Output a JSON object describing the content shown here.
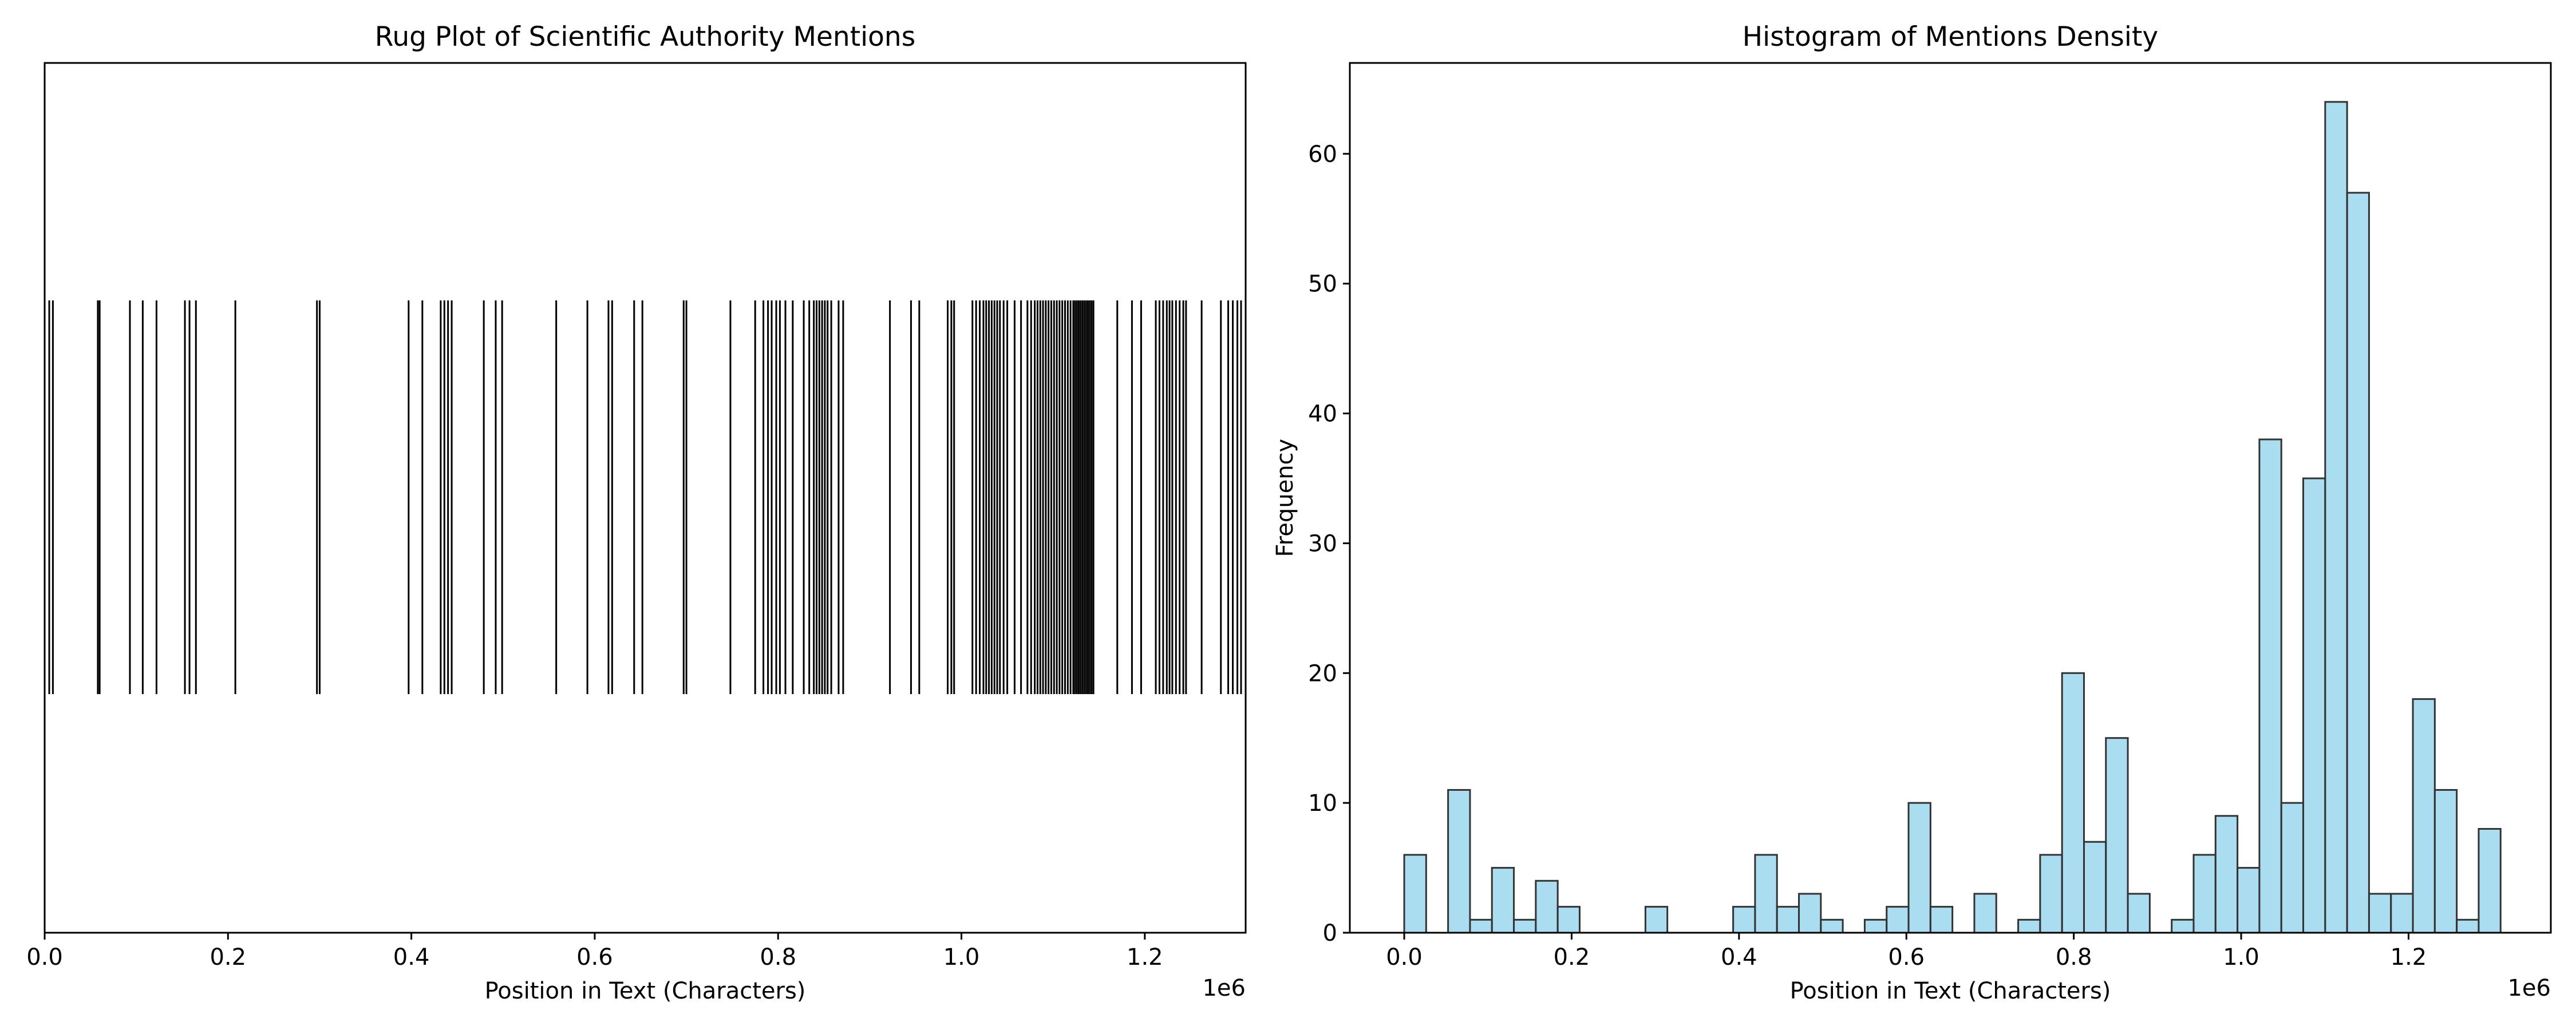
{
  "chart_data": [
    {
      "type": "rug",
      "title": "Rug Plot of Scientific Authority Mentions",
      "xlabel": "Position in Text (Characters)",
      "ylabel": "",
      "x_offset_text": "1e6",
      "xlim": [
        0,
        1310000
      ],
      "xticks": [
        0,
        200000,
        400000,
        600000,
        800000,
        1000000,
        1200000
      ],
      "xtick_labels": [
        "0.0",
        "0.2",
        "0.4",
        "0.6",
        "0.8",
        "1.0",
        "1.2"
      ],
      "grid": false,
      "positions": [
        5000,
        9000,
        58000,
        60000,
        93000,
        107000,
        122000,
        153000,
        158000,
        165000,
        208000,
        297000,
        300000,
        397000,
        412000,
        432000,
        436000,
        440000,
        444000,
        479000,
        492000,
        499000,
        558000,
        592000,
        615000,
        619000,
        643000,
        652000,
        697000,
        700000,
        748000,
        775000,
        784000,
        789000,
        793000,
        798000,
        802000,
        808000,
        816000,
        828000,
        834000,
        839000,
        842000,
        845000,
        848000,
        851000,
        854000,
        858000,
        866000,
        871000,
        922000,
        945000,
        954000,
        985000,
        989000,
        992000,
        1012000,
        1016000,
        1020000,
        1024000,
        1027000,
        1030000,
        1033000,
        1036000,
        1039000,
        1042000,
        1046000,
        1050000,
        1058000,
        1065000,
        1072000,
        1076000,
        1080000,
        1083000,
        1086000,
        1089000,
        1092000,
        1095000,
        1098000,
        1101000,
        1104000,
        1107000,
        1110000,
        1113000,
        1116000,
        1119000,
        1122000,
        1124000,
        1126000,
        1128000,
        1130000,
        1132000,
        1134000,
        1136000,
        1138000,
        1140000,
        1142000,
        1144000,
        1170000,
        1186000,
        1196000,
        1212000,
        1216000,
        1220000,
        1224000,
        1227000,
        1230000,
        1234000,
        1238000,
        1242000,
        1245000,
        1262000,
        1283000,
        1291000,
        1296000,
        1301000,
        1305000
      ]
    },
    {
      "type": "histogram",
      "title": "Histogram of Mentions Density",
      "xlabel": "Position in Text (Characters)",
      "ylabel": "Frequency",
      "x_offset_text": "1e6",
      "xlim": [
        -65000,
        1370000
      ],
      "ylim": [
        0,
        67
      ],
      "xticks": [
        0,
        200000,
        400000,
        600000,
        800000,
        1000000,
        1200000
      ],
      "xtick_labels": [
        "0.0",
        "0.2",
        "0.4",
        "0.6",
        "0.8",
        "1.0",
        "1.2"
      ],
      "yticks": [
        0,
        10,
        20,
        30,
        40,
        50,
        60
      ],
      "ytick_labels": [
        "0",
        "10",
        "20",
        "30",
        "40",
        "50",
        "60"
      ],
      "grid": false,
      "bar_color": "#87CEEB",
      "bar_edge_color": "#333333",
      "bin_start": 0,
      "bin_width": 26200,
      "counts": [
        6,
        0,
        11,
        1,
        5,
        1,
        4,
        2,
        0,
        0,
        0,
        2,
        0,
        0,
        0,
        2,
        6,
        2,
        3,
        1,
        0,
        1,
        2,
        10,
        2,
        0,
        3,
        0,
        1,
        6,
        20,
        7,
        15,
        3,
        0,
        1,
        6,
        9,
        5,
        38,
        10,
        35,
        64,
        57,
        3,
        3,
        18,
        11,
        1,
        8
      ]
    }
  ]
}
